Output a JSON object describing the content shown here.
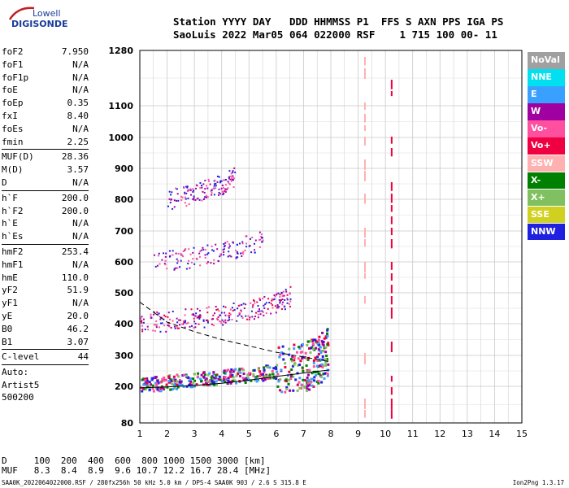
{
  "logo": {
    "line1": "Lowell",
    "line2": "DIGISONDE"
  },
  "header": {
    "row1": "Station YYYY DAY   DDD HHMMSS P1  FFS S AXN PPS IGA PS",
    "row2": "SaoLuis 2022 Mar05 064 022000 RSF    1 715 100 00- 11"
  },
  "params": {
    "group1": [
      {
        "name": "foF2",
        "value": "7.950"
      },
      {
        "name": "foF1",
        "value": "N/A"
      },
      {
        "name": "foF1p",
        "value": "N/A"
      },
      {
        "name": "foE",
        "value": "N/A"
      },
      {
        "name": "foEp",
        "value": "0.35"
      },
      {
        "name": "fxI",
        "value": "8.40"
      },
      {
        "name": "foEs",
        "value": "N/A"
      },
      {
        "name": "fmin",
        "value": "2.25"
      }
    ],
    "group2": [
      {
        "name": "MUF(D)",
        "value": "28.36"
      },
      {
        "name": "M(D)",
        "value": "3.57"
      },
      {
        "name": "D",
        "value": "N/A"
      }
    ],
    "group3": [
      {
        "name": "h`F",
        "value": "200.0"
      },
      {
        "name": "h`F2",
        "value": "200.0"
      },
      {
        "name": "h`E",
        "value": "N/A"
      },
      {
        "name": "h`Es",
        "value": "N/A"
      }
    ],
    "group4": [
      {
        "name": "hmF2",
        "value": "253.4"
      },
      {
        "name": "hmF1",
        "value": "N/A"
      },
      {
        "name": "hmE",
        "value": "110.0"
      },
      {
        "name": "yF2",
        "value": "51.9"
      },
      {
        "name": "yF1",
        "value": "N/A"
      },
      {
        "name": "yE",
        "value": "20.0"
      },
      {
        "name": "B0",
        "value": "46.2"
      },
      {
        "name": "B1",
        "value": "3.07"
      }
    ],
    "group5": [
      {
        "name": "C-level",
        "value": "44"
      }
    ],
    "auto_label": "Auto:",
    "artist": "Artist5",
    "code": "500200"
  },
  "legend": [
    {
      "label": "NoVal",
      "color": "#a0a0a0"
    },
    {
      "label": "NNE",
      "color": "#00e0f0"
    },
    {
      "label": "E",
      "color": "#3aa0ff"
    },
    {
      "label": "W",
      "color": "#a000a0"
    },
    {
      "label": "Vo-",
      "color": "#ff50a0"
    },
    {
      "label": "Vo+",
      "color": "#f00040"
    },
    {
      "label": "SSW",
      "color": "#ffb0b0"
    },
    {
      "label": "X-",
      "color": "#008000"
    },
    {
      "label": "X+",
      "color": "#80c060"
    },
    {
      "label": "SSE",
      "color": "#d0d020"
    },
    {
      "label": "NNW",
      "color": "#2020e0"
    }
  ],
  "bottom": {
    "d_row": "D     100  200  400  600  800 1000 1500 3000 [km]",
    "muf_row": "MUF   8.3  8.4  8.9  9.6 10.7 12.2 16.7 28.4 [MHz]"
  },
  "footer": "SAA0K_2022064022000.RSF / 280fx256h 50 kHz 5.0 km / DPS-4 SAA0K 903 / 2.6 S 315.8 E",
  "version": "Ion2Png 1.3.17",
  "chart_data": {
    "type": "scatter",
    "x_ticks": [
      "1",
      "2",
      "3",
      "4",
      "5",
      "6",
      "7",
      "8",
      "9",
      "10",
      "11",
      "12",
      "13",
      "14",
      "15"
    ],
    "y_ticks": [
      "80",
      "200",
      "300",
      "400",
      "500",
      "600",
      "700",
      "800",
      "900",
      "1000",
      "1100",
      "1280"
    ],
    "xlim": [
      1,
      15
    ],
    "ylim": [
      80,
      1280
    ],
    "grid": true,
    "traces": [
      {
        "name": "F-trace",
        "x": [
          1.0,
          2.0,
          3.0,
          4.0,
          5.0,
          6.0,
          7.0,
          7.5,
          7.9
        ],
        "y": [
          205,
          215,
          225,
          232,
          240,
          252,
          265,
          285,
          320
        ]
      },
      {
        "name": "2F-trace",
        "x": [
          1.0,
          2.0,
          3.0,
          4.0,
          5.0,
          6.0,
          6.5
        ],
        "y": [
          405,
          410,
          420,
          430,
          445,
          470,
          490
        ]
      },
      {
        "name": "3F-trace",
        "x": [
          1.5,
          2.5,
          3.5,
          4.5,
          5.5
        ],
        "y": [
          600,
          610,
          625,
          645,
          670
        ]
      },
      {
        "name": "4F-trace",
        "x": [
          2.0,
          3.0,
          4.0,
          4.5
        ],
        "y": [
          800,
          820,
          850,
          880
        ]
      },
      {
        "name": "profile-solid",
        "x": [
          1.0,
          2.0,
          3.0,
          4.0,
          5.0,
          6.0,
          7.0,
          7.95
        ],
        "y": [
          195,
          198,
          203,
          210,
          220,
          232,
          243,
          253
        ]
      },
      {
        "name": "profile-dashed",
        "x": [
          1.0,
          2.0,
          3.0,
          4.0,
          5.0,
          6.0,
          7.0,
          7.95
        ],
        "y": [
          470,
          405,
          375,
          350,
          330,
          310,
          295,
          280
        ]
      }
    ]
  }
}
